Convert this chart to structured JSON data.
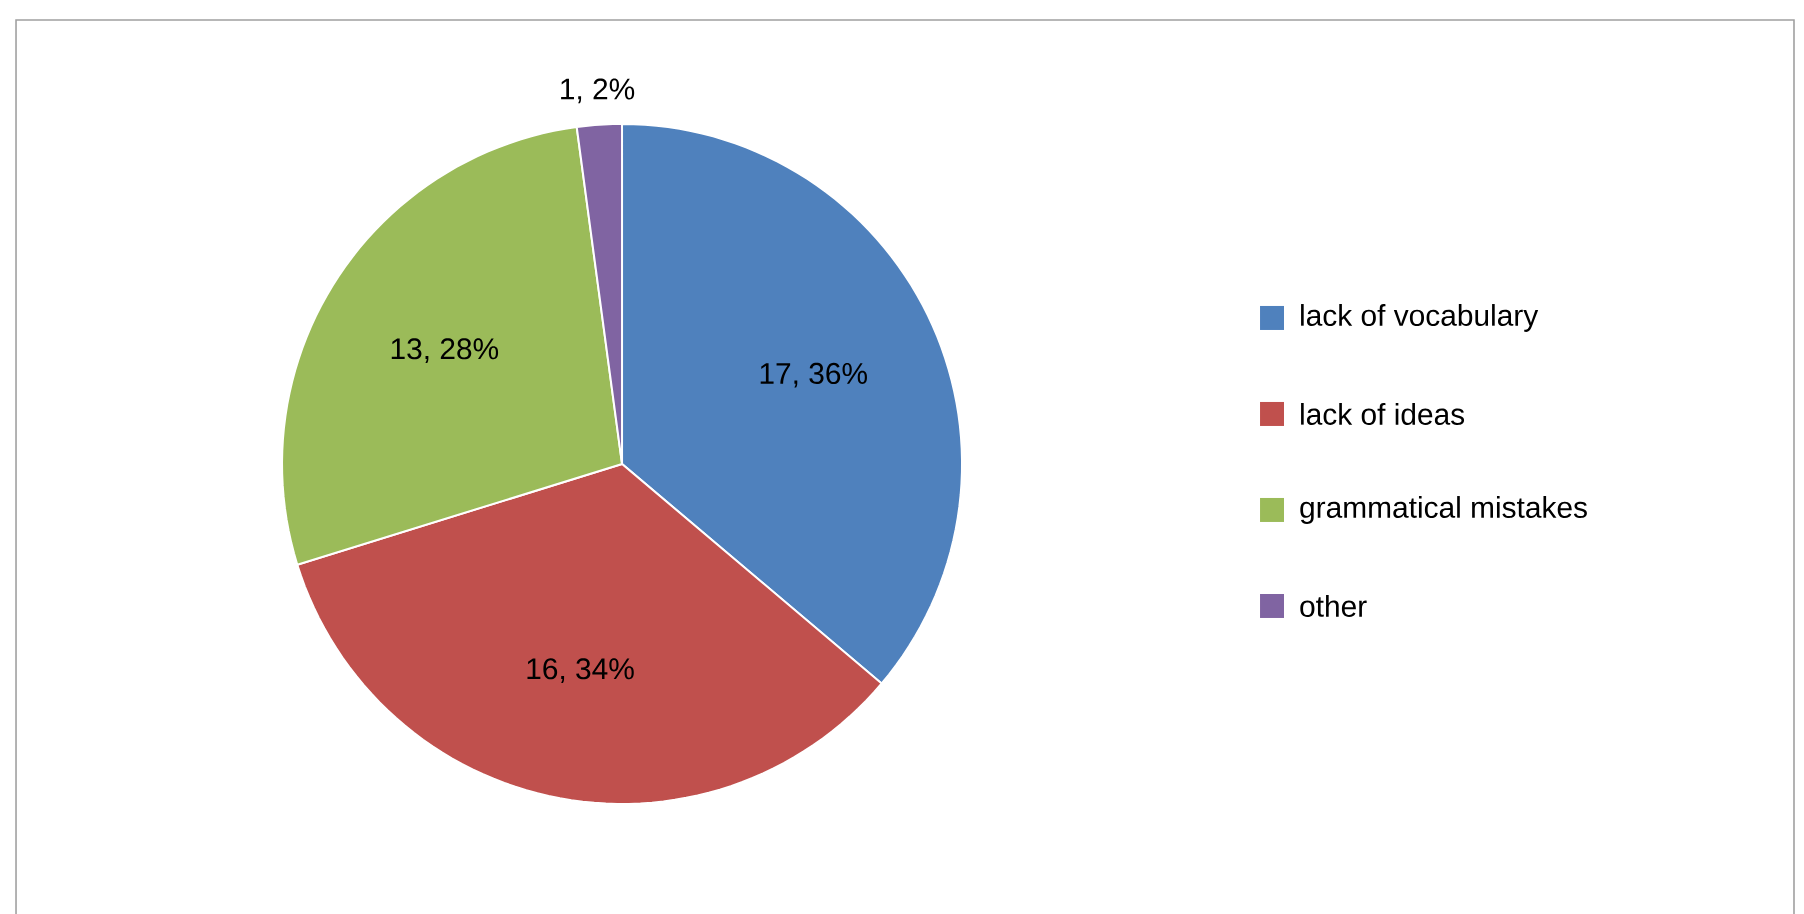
{
  "chart_data": {
    "type": "pie",
    "categories": [
      "lack of vocabulary",
      "lack of ideas",
      "grammatical mistakes",
      "other"
    ],
    "values": [
      17,
      16,
      13,
      1
    ],
    "colors": [
      "#4f81bd",
      "#c0504d",
      "#9bbb59",
      "#8064a2"
    ],
    "value_labels": [
      "17, 36%",
      "16, 34%",
      "13, 28%",
      "1, 2%"
    ],
    "legend": "right"
  }
}
